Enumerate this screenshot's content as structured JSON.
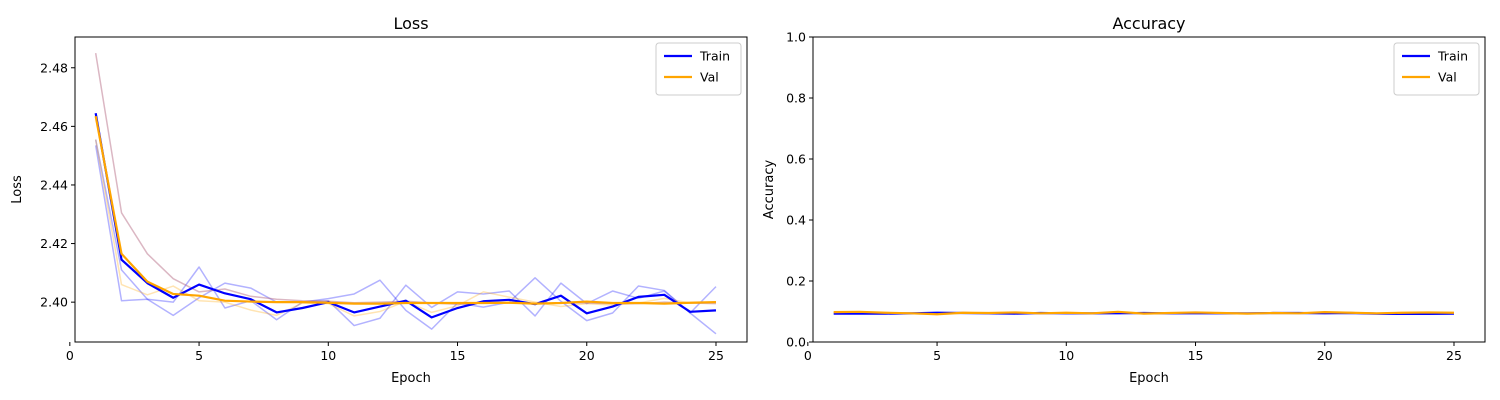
{
  "chart_data": [
    {
      "type": "line",
      "title": "Loss",
      "xlabel": "Epoch",
      "ylabel": "Loss",
      "xlim": [
        0.2,
        26.2
      ],
      "ylim": [
        2.3864,
        2.4905
      ],
      "xticks": [
        0,
        5,
        10,
        15,
        20,
        25
      ],
      "yticks": [
        2.4,
        2.42,
        2.44,
        2.46,
        2.48
      ],
      "xtick_labels": [
        "0",
        "5",
        "10",
        "15",
        "20",
        "25"
      ],
      "ytick_labels": [
        "2.40",
        "2.42",
        "2.44",
        "2.46",
        "2.48"
      ],
      "legend_position": "top-right",
      "grid": false,
      "x": [
        1,
        2,
        3,
        4,
        5,
        6,
        7,
        8,
        9,
        10,
        11,
        12,
        13,
        14,
        15,
        16,
        17,
        18,
        19,
        20,
        21,
        22,
        23,
        24,
        25
      ],
      "series": [
        {
          "name": "Train",
          "color": "#0000ff",
          "values": [
            2.4645,
            2.4145,
            2.4065,
            2.4015,
            2.406,
            2.403,
            2.401,
            2.3965,
            2.398,
            2.4,
            2.3965,
            2.3985,
            2.4005,
            2.3948,
            2.398,
            2.4003,
            2.4008,
            2.3993,
            2.4022,
            2.3962,
            2.3985,
            2.4018,
            2.4025,
            2.3967,
            2.3972
          ]
        },
        {
          "name": "Val",
          "color": "#ffa500",
          "values": [
            2.4635,
            2.4165,
            2.407,
            2.4028,
            2.4022,
            2.4005,
            2.4002,
            2.4,
            2.4,
            2.3998,
            2.3995,
            2.3995,
            2.3997,
            2.3997,
            2.3997,
            2.3997,
            2.3998,
            2.3995,
            2.3997,
            2.4002,
            2.3997,
            2.3997,
            2.3995,
            2.3998,
            2.4
          ]
        },
        {
          "color": "#0000ff",
          "opacity": 0.3,
          "values": [
            2.4535,
            2.4005,
            2.401,
            2.4,
            2.412,
            2.398,
            2.4005,
            2.394,
            2.4,
            2.4005,
            2.392,
            2.3945,
            2.4058,
            2.3982,
            2.4035,
            2.4028,
            2.4038,
            2.3953,
            2.4065,
            2.3995,
            2.4038,
            2.4013,
            2.4038,
            2.3963,
            2.4053
          ]
        },
        {
          "color": "#0000ff",
          "opacity": 0.3,
          "values": [
            2.4555,
            2.411,
            2.401,
            2.3955,
            2.4015,
            2.4065,
            2.4048,
            2.4,
            2.4,
            2.4012,
            2.4028,
            2.4075,
            2.3972,
            2.3908,
            2.3997,
            2.3983,
            2.4,
            2.4083,
            2.4003,
            2.3937,
            2.3963,
            2.4055,
            2.404,
            2.3963,
            2.3892
          ]
        },
        {
          "color": "#ffa500",
          "opacity": 0.3,
          "values": [
            2.4555,
            2.406,
            2.4025,
            2.4055,
            2.4005,
            2.4,
            2.3973,
            2.3955,
            2.3997,
            2.3995,
            2.3953,
            2.3968,
            2.4003,
            2.3965,
            2.3988,
            2.4035,
            2.4017,
            2.4,
            2.3985,
            2.3995,
            2.399,
            2.3997,
            2.4013,
            2.3997,
            2.4
          ]
        },
        {
          "color": "#b0607a",
          "opacity": 0.45,
          "values": [
            2.485,
            2.4305,
            2.4165,
            2.408,
            2.4035,
            2.4045,
            2.402,
            2.401,
            2.4005,
            2.4003,
            2.3998,
            2.4,
            2.4003,
            2.3997,
            2.3993,
            2.3997,
            2.3997,
            2.3995,
            2.3997,
            2.3997,
            2.3995,
            2.3995,
            2.4,
            2.3997,
            2.3995
          ]
        }
      ]
    },
    {
      "type": "line",
      "title": "Accuracy",
      "xlabel": "Epoch",
      "ylabel": "Accuracy",
      "xlim": [
        0.2,
        26.2
      ],
      "ylim": [
        0.0,
        1.0
      ],
      "xticks": [
        0,
        5,
        10,
        15,
        20,
        25
      ],
      "yticks": [
        0.0,
        0.2,
        0.4,
        0.6,
        0.8,
        1.0
      ],
      "xtick_labels": [
        "0",
        "5",
        "10",
        "15",
        "20",
        "25"
      ],
      "ytick_labels": [
        "0.0",
        "0.2",
        "0.4",
        "0.6",
        "0.8",
        "1.0"
      ],
      "legend_position": "top-right",
      "grid": false,
      "x": [
        1,
        2,
        3,
        4,
        5,
        6,
        7,
        8,
        9,
        10,
        11,
        12,
        13,
        14,
        15,
        16,
        17,
        18,
        19,
        20,
        21,
        22,
        23,
        24,
        25
      ],
      "series": [
        {
          "name": "Train",
          "color": "#0000ff",
          "values": [
            0.093,
            0.093,
            0.093,
            0.094,
            0.096,
            0.095,
            0.094,
            0.093,
            0.095,
            0.094,
            0.094,
            0.094,
            0.095,
            0.094,
            0.094,
            0.094,
            0.094,
            0.095,
            0.095,
            0.094,
            0.095,
            0.093,
            0.092,
            0.092,
            0.093
          ]
        },
        {
          "name": "Val",
          "color": "#ffa500",
          "values": [
            0.098,
            0.099,
            0.096,
            0.094,
            0.091,
            0.096,
            0.095,
            0.097,
            0.094,
            0.096,
            0.094,
            0.099,
            0.093,
            0.095,
            0.097,
            0.095,
            0.093,
            0.095,
            0.094,
            0.098,
            0.096,
            0.094,
            0.096,
            0.097,
            0.096
          ]
        }
      ]
    }
  ]
}
